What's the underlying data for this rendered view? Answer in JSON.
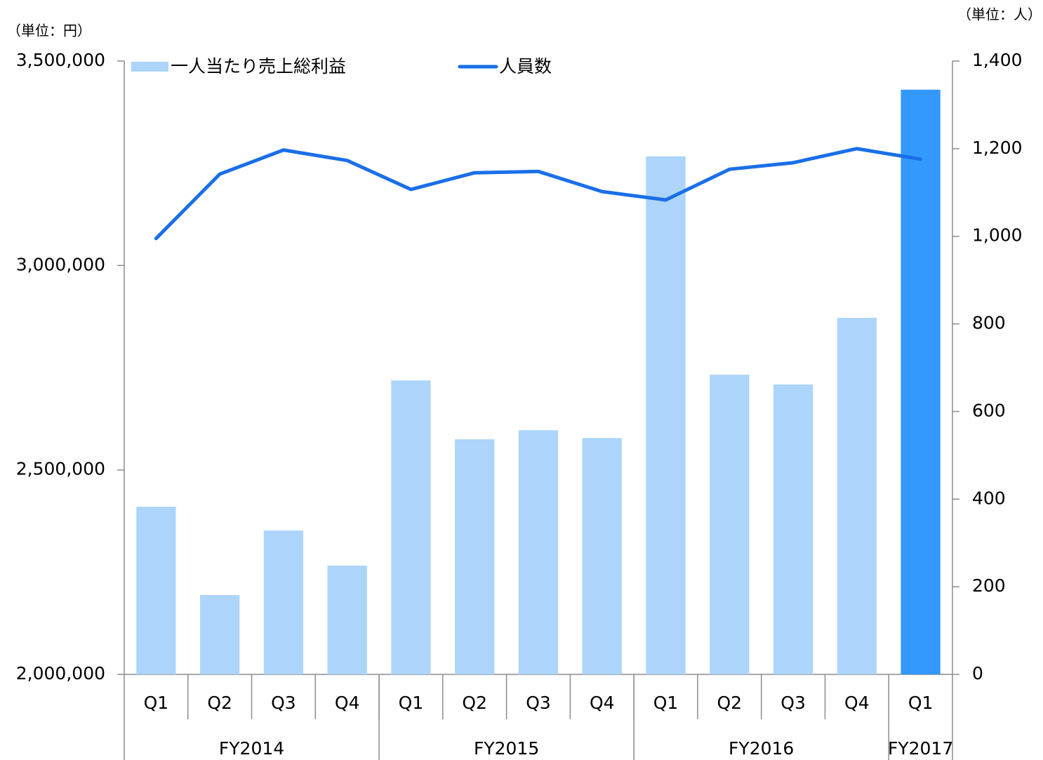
{
  "chart_data": {
    "type": "bar_line",
    "y_unit_label": "（単位：円）",
    "y2_unit_label": "（単位：人）",
    "categories": [
      "Q1",
      "Q2",
      "Q3",
      "Q4",
      "Q1",
      "Q2",
      "Q3",
      "Q4",
      "Q1",
      "Q2",
      "Q3",
      "Q4",
      "Q1"
    ],
    "groups": [
      {
        "name": "FY2014",
        "count": 4
      },
      {
        "name": "FY2015",
        "count": 4
      },
      {
        "name": "FY2016",
        "count": 4
      },
      {
        "name": "FY2017",
        "count": 1
      }
    ],
    "series": [
      {
        "name": "一人当たり売上総利益",
        "type": "bar",
        "axis": "y",
        "color": "#add5fb",
        "colors": [
          "#add5fb",
          "#add5fb",
          "#add5fb",
          "#add5fb",
          "#add5fb",
          "#add5fb",
          "#add5fb",
          "#add5fb",
          "#add5fb",
          "#add5fb",
          "#add5fb",
          "#add5fb",
          "#3399ff"
        ],
        "values": [
          2410000,
          2194000,
          2352000,
          2266000,
          2719000,
          2575000,
          2597000,
          2578000,
          3267000,
          2733000,
          2709000,
          2872000,
          3430000
        ]
      },
      {
        "name": "人員数",
        "type": "line",
        "axis": "y2",
        "color": "#1a6fe8",
        "values": [
          995,
          1142,
          1197,
          1173,
          1107,
          1145,
          1148,
          1102,
          1083,
          1153,
          1168,
          1200,
          1176
        ]
      }
    ],
    "ylim": [
      2000000,
      3500000
    ],
    "yticks": [
      {
        "value": 2000000,
        "label": "2,000,000"
      },
      {
        "value": 2500000,
        "label": "2,500,000"
      },
      {
        "value": 3000000,
        "label": "3,000,000"
      },
      {
        "value": 3500000,
        "label": "3,500,000"
      }
    ],
    "y2lim": [
      0,
      1400
    ],
    "y2ticks": [
      0,
      200,
      400,
      600,
      800,
      {
        "value": 1000,
        "label": "1,000"
      },
      {
        "value": 1200,
        "label": "1,200"
      },
      {
        "value": 1400,
        "label": "1,400"
      }
    ],
    "grid": false
  }
}
